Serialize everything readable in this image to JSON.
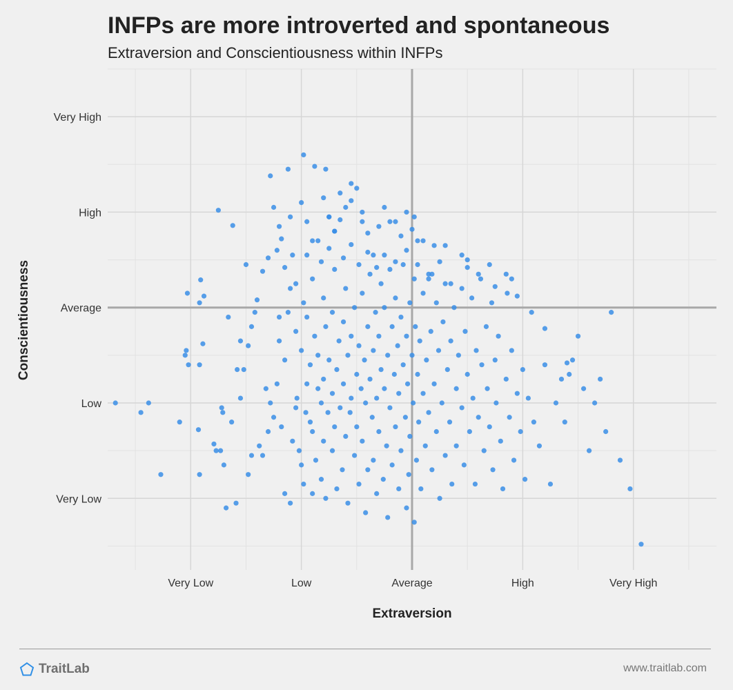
{
  "header": {
    "title": "INFPs are more introverted and spontaneous",
    "subtitle": "Extraversion and Conscientiousness within INFPs"
  },
  "footer": {
    "brand": "TraitLab",
    "url": "www.traitlab.com",
    "logo_icon": "pentagon-icon",
    "logo_color": "#2f8fe6"
  },
  "chart_data": {
    "type": "scatter",
    "title": "INFPs are more introverted and spontaneous",
    "subtitle": "Extraversion and Conscientiousness within INFPs",
    "xlabel": "Extraversion",
    "ylabel": "Conscientiousness",
    "x_tick_labels": [
      "Very Low",
      "Low",
      "Average",
      "High",
      "Very High"
    ],
    "y_tick_labels": [
      "Very Low",
      "Low",
      "Average",
      "High",
      "Very High"
    ],
    "tick_values": [
      -2,
      -1,
      0,
      1,
      2
    ],
    "xlim": [
      -2.75,
      2.75
    ],
    "ylim": [
      -2.75,
      2.5
    ],
    "reference_lines": {
      "x": 0,
      "y": 0
    },
    "grid": true,
    "point_color": "#3a8ee6",
    "points": [
      [
        -2.45,
        -1.1
      ],
      [
        -2.27,
        -1.75
      ],
      [
        -2.1,
        -1.2
      ],
      [
        -2.05,
        -0.5
      ],
      [
        -2.04,
        -0.45
      ],
      [
        -2.03,
        0.15
      ],
      [
        -2.02,
        -0.6
      ],
      [
        -1.93,
        -1.28
      ],
      [
        -1.92,
        0.05
      ],
      [
        -1.92,
        -0.6
      ],
      [
        -1.92,
        -1.75
      ],
      [
        -1.91,
        0.29
      ],
      [
        -1.88,
        0.12
      ],
      [
        -1.89,
        -0.38
      ],
      [
        -1.79,
        -1.43
      ],
      [
        -1.77,
        -1.5
      ],
      [
        -1.73,
        -1.5
      ],
      [
        -1.7,
        -1.65
      ],
      [
        -1.68,
        -2.1
      ],
      [
        -1.72,
        -1.05
      ],
      [
        -1.71,
        -1.1
      ],
      [
        -1.66,
        -0.1
      ],
      [
        -1.63,
        -1.2
      ],
      [
        -1.62,
        0.86
      ],
      [
        -1.59,
        -2.05
      ],
      [
        -1.58,
        -0.65
      ],
      [
        -1.55,
        -0.35
      ],
      [
        -1.55,
        -0.95
      ],
      [
        -1.52,
        -0.65
      ],
      [
        -1.48,
        -1.75
      ],
      [
        -1.48,
        -0.4
      ],
      [
        -1.45,
        -0.2
      ],
      [
        -1.42,
        -0.05
      ],
      [
        -1.45,
        -1.55
      ],
      [
        -1.4,
        0.08
      ],
      [
        -1.38,
        -1.45
      ],
      [
        -1.35,
        -1.55
      ],
      [
        -1.32,
        -0.85
      ],
      [
        -1.3,
        -1.3
      ],
      [
        -1.28,
        -1.0
      ],
      [
        -1.25,
        -1.15
      ],
      [
        -1.22,
        -0.8
      ],
      [
        -1.2,
        -0.35
      ],
      [
        -1.2,
        -0.1
      ],
      [
        -1.18,
        -1.25
      ],
      [
        -1.15,
        -1.95
      ],
      [
        -1.15,
        -0.55
      ],
      [
        -1.12,
        -0.05
      ],
      [
        -1.1,
        -2.05
      ],
      [
        -1.1,
        0.2
      ],
      [
        -1.08,
        -1.4
      ],
      [
        -1.05,
        -1.05
      ],
      [
        -1.05,
        -0.25
      ],
      [
        -1.04,
        -0.95
      ],
      [
        -1.02,
        -1.5
      ],
      [
        -1.0,
        -1.65
      ],
      [
        -1.0,
        -0.45
      ],
      [
        -0.98,
        0.05
      ],
      [
        -0.98,
        -1.85
      ],
      [
        -0.96,
        -1.1
      ],
      [
        -0.95,
        -0.8
      ],
      [
        -0.95,
        -0.1
      ],
      [
        -0.92,
        -1.2
      ],
      [
        -0.92,
        -0.6
      ],
      [
        -0.9,
        -1.95
      ],
      [
        -0.9,
        -1.3
      ],
      [
        -0.9,
        0.3
      ],
      [
        -0.88,
        -0.3
      ],
      [
        -0.87,
        -1.6
      ],
      [
        -0.85,
        -0.85
      ],
      [
        -0.85,
        -0.5
      ],
      [
        -0.82,
        -1.0
      ],
      [
        -0.82,
        -1.8
      ],
      [
        -0.8,
        0.1
      ],
      [
        -0.8,
        -0.75
      ],
      [
        -0.8,
        -1.4
      ],
      [
        -0.78,
        -2.0
      ],
      [
        -0.78,
        -0.2
      ],
      [
        -0.76,
        -1.1
      ],
      [
        -0.75,
        -0.55
      ],
      [
        -0.72,
        -1.5
      ],
      [
        -0.72,
        -0.9
      ],
      [
        -0.72,
        -0.05
      ],
      [
        -0.7,
        -1.25
      ],
      [
        -0.7,
        0.4
      ],
      [
        -0.68,
        -0.65
      ],
      [
        -0.68,
        -1.9
      ],
      [
        -0.66,
        -0.35
      ],
      [
        -0.65,
        -1.05
      ],
      [
        -0.63,
        -1.7
      ],
      [
        -0.62,
        -0.15
      ],
      [
        -0.62,
        -0.8
      ],
      [
        -0.6,
        -1.35
      ],
      [
        -0.6,
        0.2
      ],
      [
        -0.58,
        -0.5
      ],
      [
        -0.58,
        -2.05
      ],
      [
        -0.56,
        -1.1
      ],
      [
        -0.55,
        -0.95
      ],
      [
        -0.55,
        -0.3
      ],
      [
        -0.52,
        -1.55
      ],
      [
        -0.52,
        0.0
      ],
      [
        -0.5,
        -0.7
      ],
      [
        -0.5,
        -1.25
      ],
      [
        -0.48,
        -1.85
      ],
      [
        -0.48,
        -0.4
      ],
      [
        -0.46,
        -0.85
      ],
      [
        -0.45,
        0.15
      ],
      [
        -0.45,
        -1.4
      ],
      [
        -0.43,
        -0.55
      ],
      [
        -0.42,
        -2.15
      ],
      [
        -0.42,
        -1.0
      ],
      [
        -0.4,
        -0.2
      ],
      [
        -0.4,
        -1.7
      ],
      [
        -0.38,
        -0.75
      ],
      [
        -0.38,
        0.35
      ],
      [
        -0.36,
        -1.15
      ],
      [
        -0.35,
        -0.45
      ],
      [
        -0.35,
        -1.6
      ],
      [
        -0.33,
        -0.05
      ],
      [
        -0.32,
        -0.95
      ],
      [
        -0.32,
        -1.95
      ],
      [
        -0.3,
        -0.3
      ],
      [
        -0.3,
        -1.3
      ],
      [
        -0.28,
        0.25
      ],
      [
        -0.28,
        -0.65
      ],
      [
        -0.26,
        -1.8
      ],
      [
        -0.25,
        -0.85
      ],
      [
        -0.25,
        0.0
      ],
      [
        -0.23,
        -1.45
      ],
      [
        -0.22,
        -0.5
      ],
      [
        -0.22,
        -2.2
      ],
      [
        -0.2,
        -1.05
      ],
      [
        -0.2,
        0.4
      ],
      [
        -0.18,
        -0.2
      ],
      [
        -0.18,
        -1.65
      ],
      [
        -0.16,
        -0.7
      ],
      [
        -0.15,
        -1.25
      ],
      [
        -0.15,
        0.1
      ],
      [
        -0.13,
        -0.4
      ],
      [
        -0.12,
        -1.9
      ],
      [
        -0.12,
        -0.9
      ],
      [
        -0.1,
        -0.1
      ],
      [
        -0.1,
        -1.5
      ],
      [
        -0.08,
        0.45
      ],
      [
        -0.08,
        -0.6
      ],
      [
        -0.06,
        -1.15
      ],
      [
        -0.05,
        -2.1
      ],
      [
        -0.05,
        -0.3
      ],
      [
        -0.04,
        -0.8
      ],
      [
        -0.03,
        -1.75
      ],
      [
        -0.02,
        0.05
      ],
      [
        -0.02,
        -1.35
      ],
      [
        0.0,
        -0.5
      ],
      [
        0.01,
        -1.0
      ],
      [
        0.02,
        -2.25
      ],
      [
        0.02,
        0.3
      ],
      [
        0.03,
        -0.2
      ],
      [
        0.04,
        -1.6
      ],
      [
        0.05,
        -0.7
      ],
      [
        0.06,
        -1.2
      ],
      [
        0.07,
        -0.35
      ],
      [
        0.08,
        -1.9
      ],
      [
        0.1,
        0.15
      ],
      [
        0.1,
        -0.9
      ],
      [
        0.12,
        -1.45
      ],
      [
        0.13,
        -0.55
      ],
      [
        0.15,
        0.35
      ],
      [
        0.15,
        -1.1
      ],
      [
        0.17,
        -0.25
      ],
      [
        0.18,
        -1.7
      ],
      [
        0.2,
        -0.8
      ],
      [
        0.22,
        0.05
      ],
      [
        0.22,
        -1.3
      ],
      [
        0.24,
        -0.45
      ],
      [
        0.25,
        -2.0
      ],
      [
        0.27,
        -1.0
      ],
      [
        0.28,
        -0.15
      ],
      [
        0.3,
        -1.55
      ],
      [
        0.3,
        0.25
      ],
      [
        0.32,
        -0.65
      ],
      [
        0.34,
        -1.2
      ],
      [
        0.35,
        -0.35
      ],
      [
        0.36,
        -1.85
      ],
      [
        0.38,
        0.0
      ],
      [
        0.4,
        -0.85
      ],
      [
        0.4,
        -1.45
      ],
      [
        0.42,
        -0.5
      ],
      [
        0.45,
        -1.05
      ],
      [
        0.45,
        0.2
      ],
      [
        0.47,
        -1.65
      ],
      [
        0.48,
        -0.25
      ],
      [
        0.5,
        -0.7
      ],
      [
        0.52,
        -1.3
      ],
      [
        0.54,
        0.1
      ],
      [
        0.55,
        -0.95
      ],
      [
        0.57,
        -1.85
      ],
      [
        0.58,
        -0.45
      ],
      [
        0.6,
        -1.15
      ],
      [
        0.62,
        0.3
      ],
      [
        0.63,
        -0.6
      ],
      [
        0.65,
        -1.5
      ],
      [
        0.67,
        -0.2
      ],
      [
        0.68,
        -0.85
      ],
      [
        0.7,
        -1.25
      ],
      [
        0.72,
        0.05
      ],
      [
        0.73,
        -1.7
      ],
      [
        0.75,
        -0.55
      ],
      [
        0.76,
        -1.0
      ],
      [
        0.78,
        -0.3
      ],
      [
        0.8,
        -1.4
      ],
      [
        0.82,
        -1.9
      ],
      [
        0.85,
        -0.75
      ],
      [
        0.86,
        0.15
      ],
      [
        0.88,
        -1.15
      ],
      [
        0.9,
        -0.45
      ],
      [
        0.92,
        -1.6
      ],
      [
        0.95,
        -0.9
      ],
      [
        0.98,
        -1.3
      ],
      [
        1.0,
        -0.65
      ],
      [
        1.02,
        -1.8
      ],
      [
        1.05,
        -0.95
      ],
      [
        1.1,
        -1.2
      ],
      [
        1.15,
        -1.45
      ],
      [
        1.2,
        -0.6
      ],
      [
        1.25,
        -1.85
      ],
      [
        1.3,
        -1.0
      ],
      [
        1.35,
        -0.75
      ],
      [
        1.38,
        -1.2
      ],
      [
        1.42,
        -0.7
      ],
      [
        1.45,
        -0.55
      ],
      [
        1.5,
        -0.3
      ],
      [
        1.55,
        -0.85
      ],
      [
        1.6,
        -1.5
      ],
      [
        1.65,
        -1.0
      ],
      [
        1.7,
        -0.75
      ],
      [
        1.75,
        -1.3
      ],
      [
        1.8,
        -0.05
      ],
      [
        1.88,
        -1.6
      ],
      [
        1.97,
        -1.9
      ],
      [
        2.07,
        -2.48
      ],
      [
        -1.35,
        0.38
      ],
      [
        -1.3,
        0.52
      ],
      [
        -1.22,
        0.6
      ],
      [
        -1.15,
        0.42
      ],
      [
        -1.08,
        0.55
      ],
      [
        -1.05,
        0.25
      ],
      [
        -0.95,
        0.55
      ],
      [
        -0.9,
        0.7
      ],
      [
        -0.82,
        0.48
      ],
      [
        -0.75,
        0.62
      ],
      [
        -0.7,
        0.8
      ],
      [
        -0.62,
        0.52
      ],
      [
        -0.55,
        0.66
      ],
      [
        -0.48,
        0.45
      ],
      [
        -0.4,
        0.58
      ],
      [
        -0.32,
        0.42
      ],
      [
        -0.25,
        0.55
      ],
      [
        -0.15,
        0.48
      ],
      [
        -0.05,
        0.6
      ],
      [
        0.05,
        0.45
      ],
      [
        0.15,
        0.3
      ],
      [
        0.25,
        0.48
      ],
      [
        0.35,
        0.25
      ],
      [
        0.5,
        0.42
      ],
      [
        0.6,
        0.35
      ],
      [
        0.75,
        0.22
      ],
      [
        0.85,
        0.35
      ],
      [
        0.95,
        0.12
      ],
      [
        1.08,
        -0.05
      ],
      [
        1.2,
        -0.22
      ],
      [
        1.4,
        -0.58
      ],
      [
        -1.25,
        1.05
      ],
      [
        -1.2,
        0.85
      ],
      [
        -1.18,
        0.72
      ],
      [
        -1.1,
        0.95
      ],
      [
        -1.0,
        1.1
      ],
      [
        -0.95,
        0.9
      ],
      [
        -0.85,
        0.7
      ],
      [
        -0.8,
        1.15
      ],
      [
        -0.75,
        0.95
      ],
      [
        -0.7,
        0.8
      ],
      [
        -0.65,
        1.2
      ],
      [
        -0.6,
        1.05
      ],
      [
        -0.55,
        1.3
      ],
      [
        -0.5,
        1.25
      ],
      [
        -0.45,
        0.9
      ],
      [
        -0.4,
        0.78
      ],
      [
        -0.3,
        0.85
      ],
      [
        -0.2,
        0.9
      ],
      [
        -0.1,
        0.75
      ],
      [
        0.0,
        0.82
      ],
      [
        0.02,
        0.95
      ],
      [
        0.1,
        0.7
      ],
      [
        0.2,
        0.65
      ],
      [
        0.3,
        0.65
      ],
      [
        0.45,
        0.55
      ],
      [
        0.5,
        0.5
      ],
      [
        0.7,
        0.45
      ],
      [
        0.9,
        0.3
      ],
      [
        -1.75,
        1.02
      ],
      [
        -1.5,
        0.45
      ],
      [
        -1.28,
        1.38
      ],
      [
        -1.12,
        1.45
      ],
      [
        -0.98,
        1.6
      ],
      [
        -0.88,
        1.48
      ],
      [
        -0.78,
        1.45
      ],
      [
        -0.75,
        0.95
      ],
      [
        -0.65,
        0.92
      ],
      [
        -0.55,
        1.12
      ],
      [
        -0.45,
        1.0
      ],
      [
        -0.35,
        0.55
      ],
      [
        -0.25,
        1.05
      ],
      [
        -0.15,
        0.9
      ],
      [
        -0.05,
        1.0
      ],
      [
        0.05,
        0.7
      ],
      [
        0.18,
        0.35
      ],
      [
        -2.68,
        -1.0
      ],
      [
        -2.38,
        -1.0
      ]
    ]
  }
}
